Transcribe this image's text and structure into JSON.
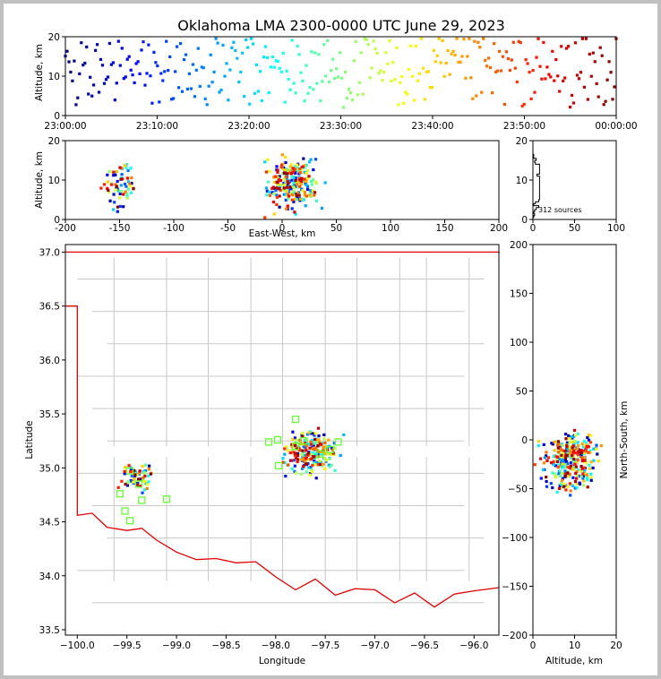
{
  "title": "Oklahoma LMA 2300-0000 UTC June 29, 2023",
  "source_count_label": "312 sources",
  "colors": {
    "county_lines": "#c8c8c8",
    "state_border": "#e00000",
    "station_marker": "#66ff33"
  },
  "chart_data": [
    {
      "id": "time-height",
      "type": "scatter",
      "ylabel": "Altitude, km",
      "xlabel": "",
      "xticks": [
        "23:00:00",
        "23:10:00",
        "23:20:00",
        "23:30:00",
        "23:40:00",
        "23:50:00",
        "00:00:00"
      ],
      "xlim_minutes": [
        0,
        60
      ],
      "ylim": [
        0,
        20
      ],
      "yticks": [
        0,
        10,
        20
      ],
      "color_encoding": "time (blue → red)"
    },
    {
      "id": "east-west-altitude",
      "type": "scatter",
      "xlabel": "East-West, km",
      "ylabel": "Altitude, km",
      "xlim": [
        -200,
        200
      ],
      "xticks": [
        -200,
        -150,
        -100,
        -50,
        0,
        50,
        100,
        150,
        200
      ],
      "ylim": [
        0,
        20
      ],
      "yticks": [
        0,
        10,
        20
      ]
    },
    {
      "id": "altitude-histogram",
      "type": "line",
      "xlim": [
        0,
        100
      ],
      "xticks": [
        0,
        50,
        100
      ],
      "ylim": [
        0,
        20
      ],
      "yticks": [
        0,
        10,
        20
      ]
    },
    {
      "id": "plan-view",
      "type": "scatter",
      "xlabel": "Longitude",
      "ylabel": "Latitude",
      "xlim": [
        -100.12,
        -95.75
      ],
      "ylim": [
        33.45,
        37.07
      ],
      "xticks": [
        -100.0,
        -99.5,
        -99.0,
        -98.5,
        -98.0,
        -97.5,
        -97.0,
        -96.5,
        -96.0
      ],
      "yticks": [
        33.5,
        34.0,
        34.5,
        35.0,
        35.5,
        36.0,
        36.5,
        37.0
      ],
      "xtick_labels": [
        "−100.0",
        "−99.5",
        "−99.0",
        "−98.5",
        "−98.0",
        "−97.5",
        "−97.0",
        "−96.5",
        "−96.0"
      ],
      "ytick_labels": [
        "33.5",
        "34.0",
        "34.5",
        "35.0",
        "35.5",
        "36.0",
        "36.5",
        "37.0"
      ],
      "stations": [
        [
          -99.47,
          34.97
        ],
        [
          -99.38,
          34.85
        ],
        [
          -99.57,
          34.76
        ],
        [
          -99.52,
          34.6
        ],
        [
          -99.47,
          34.51
        ],
        [
          -99.35,
          34.7
        ],
        [
          -99.1,
          34.71
        ],
        [
          -98.07,
          35.24
        ],
        [
          -97.98,
          35.26
        ],
        [
          -97.97,
          35.02
        ],
        [
          -97.8,
          35.45
        ],
        [
          -97.72,
          35.25
        ],
        [
          -97.55,
          35.13
        ],
        [
          -97.45,
          35.17
        ],
        [
          -97.37,
          35.24
        ],
        [
          -97.8,
          35.2
        ]
      ]
    },
    {
      "id": "altitude-north-south",
      "type": "scatter",
      "xlabel": "Altitude, km",
      "ylabel": "North-South, km",
      "xlim": [
        0,
        20
      ],
      "xticks": [
        0,
        10,
        20
      ],
      "ylim": [
        -200,
        200
      ],
      "yticks": [
        -200,
        -150,
        -100,
        -50,
        0,
        50,
        100,
        150,
        200
      ],
      "ytick_labels": [
        "−200",
        "−150",
        "−100",
        "−50",
        "0",
        "50",
        "100",
        "150",
        "200"
      ],
      "xtick_labels": [
        "0",
        "10",
        "20"
      ]
    }
  ]
}
